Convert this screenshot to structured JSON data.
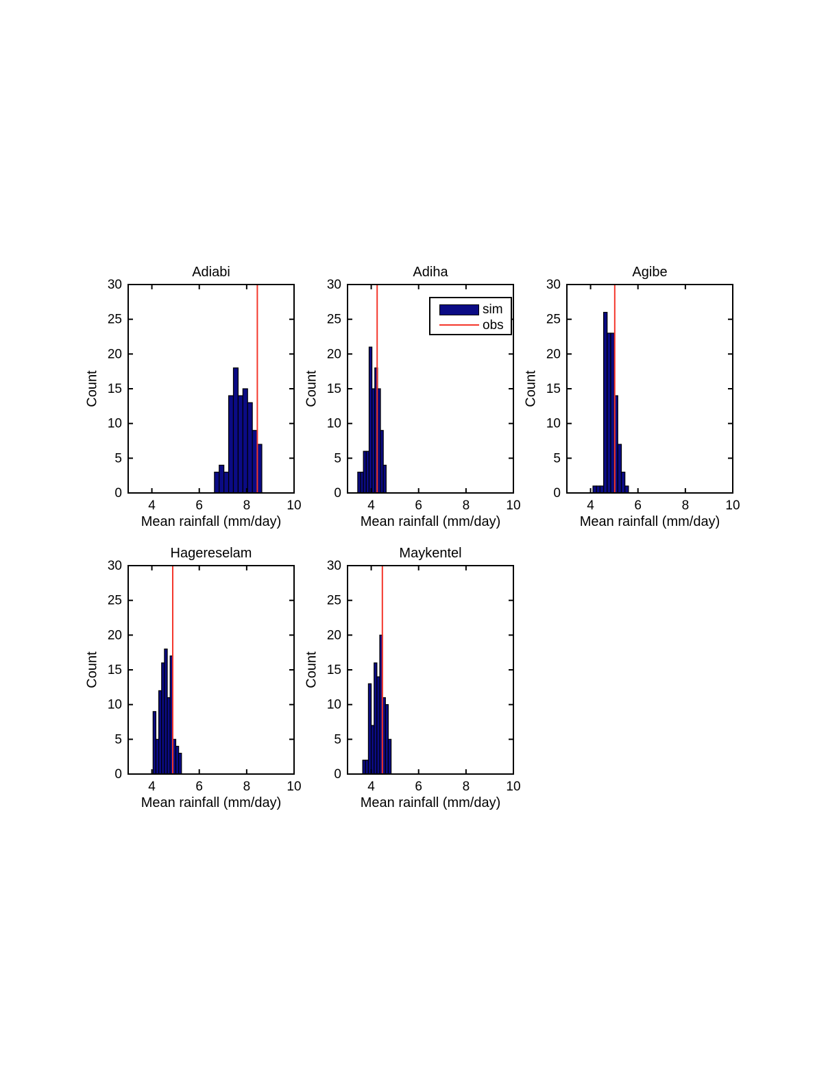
{
  "figure": {
    "x_ticks": [
      4,
      6,
      8,
      10
    ],
    "y_ticks": [
      0,
      5,
      10,
      15,
      20,
      25,
      30
    ],
    "xlim": [
      3,
      10
    ],
    "ylim": [
      0,
      30
    ]
  },
  "legend": {
    "sim_label": "sim",
    "obs_label": "obs",
    "position": "top-right of Adiha subplot"
  },
  "colors": {
    "bar_fill": "#0b0b84",
    "bar_edge": "#000000",
    "obs_line": "#f4362a",
    "axis": "#000000",
    "background": "#ffffff"
  },
  "chart_data": [
    {
      "type": "bar",
      "subtype": "histogram",
      "title": "Adiabi",
      "xlabel": "Mean rainfall (mm/day)",
      "ylabel": "Count",
      "xlim": [
        3,
        10
      ],
      "ylim": [
        0,
        30
      ],
      "bin_start": 6.64,
      "bin_width": 0.2,
      "counts": [
        3,
        4,
        3,
        14,
        18,
        14,
        15,
        13,
        9,
        7
      ],
      "obs": 8.45
    },
    {
      "type": "bar",
      "subtype": "histogram",
      "title": "Adiha",
      "xlabel": "Mean rainfall (mm/day)",
      "ylabel": "Count",
      "xlim": [
        3,
        10
      ],
      "ylim": [
        0,
        30
      ],
      "bin_start": 3.43,
      "bin_width": 0.12,
      "counts": [
        3,
        3,
        6,
        6,
        21,
        15,
        18,
        15,
        9,
        4
      ],
      "obs": 4.25
    },
    {
      "type": "bar",
      "subtype": "histogram",
      "title": "Agibe",
      "xlabel": "Mean rainfall (mm/day)",
      "ylabel": "Count",
      "xlim": [
        3,
        10
      ],
      "ylim": [
        0,
        30
      ],
      "bin_start": 4.1,
      "bin_width": 0.15,
      "counts": [
        1,
        1,
        1,
        26,
        23,
        23,
        14,
        7,
        3,
        1
      ],
      "obs": 5.02
    },
    {
      "type": "bar",
      "subtype": "histogram",
      "title": "Hagereselam",
      "xlabel": "Mean rainfall (mm/day)",
      "ylabel": "Count",
      "xlim": [
        3,
        10
      ],
      "ylim": [
        0,
        30
      ],
      "bin_start": 4.05,
      "bin_width": 0.12,
      "counts": [
        9,
        5,
        12,
        16,
        18,
        11,
        17,
        5,
        4,
        3
      ],
      "obs": 4.88
    },
    {
      "type": "bar",
      "subtype": "histogram",
      "title": "Maykentel",
      "xlabel": "Mean rainfall (mm/day)",
      "ylabel": "Count",
      "xlim": [
        3,
        10
      ],
      "ylim": [
        0,
        30
      ],
      "bin_start": 3.64,
      "bin_width": 0.12,
      "counts": [
        2,
        2,
        13,
        7,
        16,
        14,
        20,
        11,
        10,
        5
      ],
      "obs": 4.47
    }
  ]
}
